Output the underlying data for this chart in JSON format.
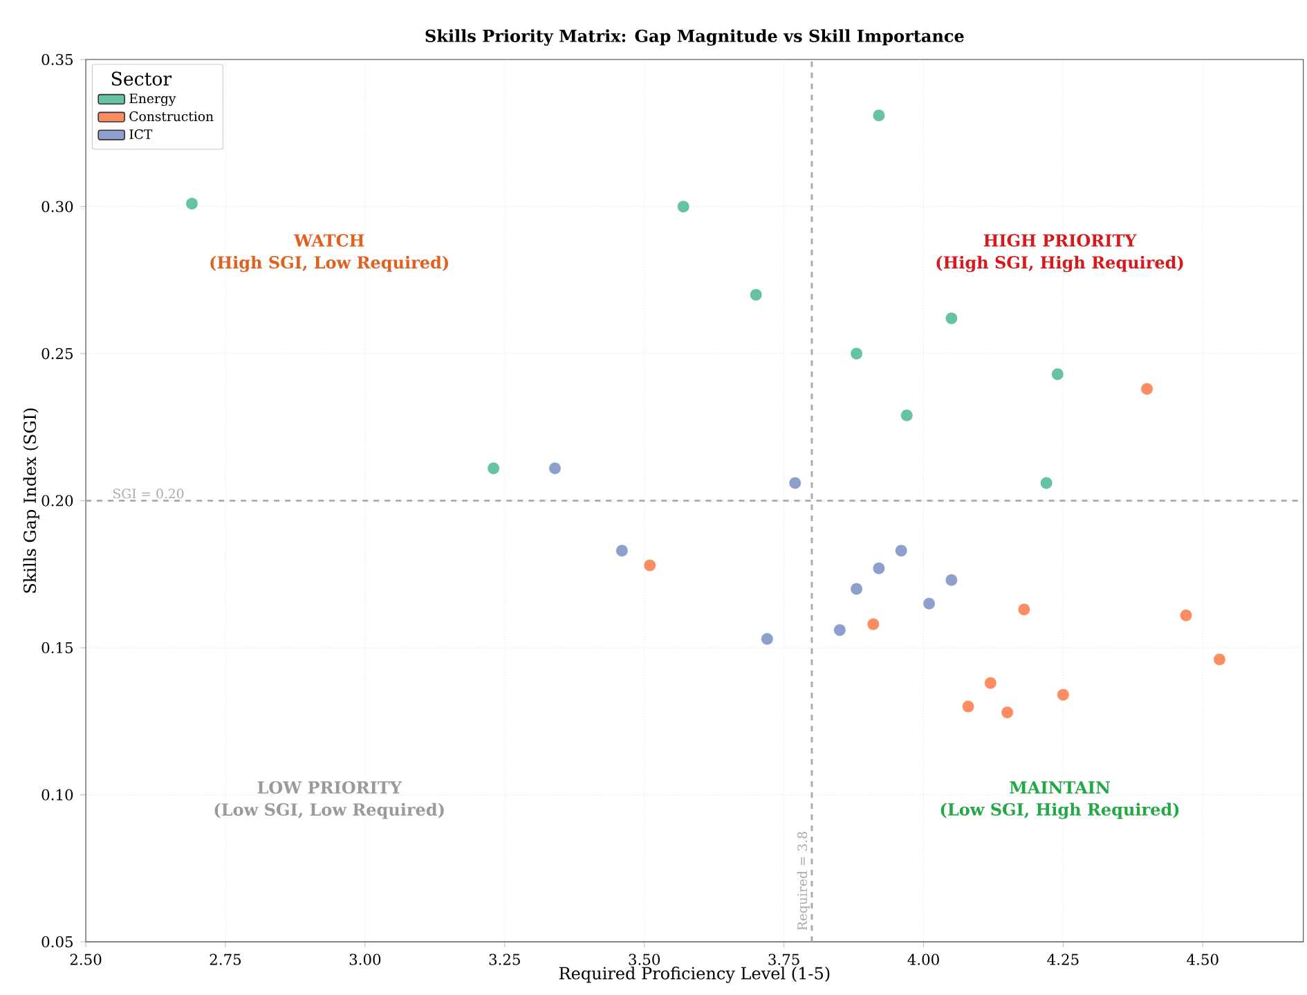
{
  "chart_data": {
    "type": "scatter",
    "title": "Skills Priority Matrix: Gap Magnitude vs Skill Importance",
    "xlabel": "Required Proficiency Level (1-5)",
    "ylabel": "Skills Gap Index (SGI)",
    "legend_title": "Sector",
    "series": [
      {
        "name": "Energy",
        "color": "#66c2a5",
        "x": [
          2.69,
          3.92,
          3.57,
          3.7,
          4.05,
          3.88,
          4.24,
          3.97,
          3.23,
          4.22
        ],
        "values": [
          0.301,
          0.331,
          0.3,
          0.27,
          0.262,
          0.25,
          0.243,
          0.229,
          0.211,
          0.206
        ]
      },
      {
        "name": "Construction",
        "color": "#fc8d62",
        "x": [
          4.4,
          3.51,
          3.91,
          4.18,
          4.47,
          4.53,
          4.12,
          4.08,
          4.15,
          4.25
        ],
        "values": [
          0.238,
          0.178,
          0.158,
          0.163,
          0.161,
          0.146,
          0.138,
          0.13,
          0.128,
          0.134
        ]
      },
      {
        "name": "ICT",
        "color": "#8da0cb",
        "x": [
          3.34,
          3.77,
          3.46,
          3.96,
          3.92,
          3.88,
          4.05,
          4.01,
          3.85,
          3.72
        ],
        "values": [
          0.211,
          0.206,
          0.183,
          0.183,
          0.177,
          0.17,
          0.173,
          0.165,
          0.156,
          0.153
        ]
      }
    ],
    "xlim": [
      2.5,
      4.68
    ],
    "ylim": [
      0.05,
      0.35
    ],
    "xticks": [
      {
        "value": 2.5,
        "label": "2.50"
      },
      {
        "value": 2.75,
        "label": "2.75"
      },
      {
        "value": 3.0,
        "label": "3.00"
      },
      {
        "value": 3.25,
        "label": "3.25"
      },
      {
        "value": 3.5,
        "label": "3.50"
      },
      {
        "value": 3.75,
        "label": "3.75"
      },
      {
        "value": 4.0,
        "label": "4.00"
      },
      {
        "value": 4.25,
        "label": "4.25"
      },
      {
        "value": 4.5,
        "label": "4.50"
      }
    ],
    "yticks": [
      {
        "value": 0.05,
        "label": "0.05"
      },
      {
        "value": 0.1,
        "label": "0.10"
      },
      {
        "value": 0.15,
        "label": "0.15"
      },
      {
        "value": 0.2,
        "label": "0.20"
      },
      {
        "value": 0.25,
        "label": "0.25"
      },
      {
        "value": 0.3,
        "label": "0.30"
      },
      {
        "value": 0.35,
        "label": "0.35"
      }
    ],
    "ref_lines": [
      {
        "axis": "y",
        "value": 0.2,
        "label": "SGI = 0.20",
        "color": "#aaaaaa",
        "line_style": "dashed"
      },
      {
        "axis": "x",
        "value": 3.8,
        "label": "Required = 3.8",
        "color": "#aaaaaa",
        "line_style": "dashed"
      }
    ],
    "annotations": [
      "WATCH",
      "(High SGI, Low Required)",
      "HIGH PRIORITY",
      "(High SGI, High Required)",
      "LOW PRIORITY",
      "(Low SGI, Low Required)",
      "MAINTAIN",
      "(Low SGI, High Required)"
    ],
    "grid": true,
    "legend": "top left",
    "marker": "circle"
  }
}
